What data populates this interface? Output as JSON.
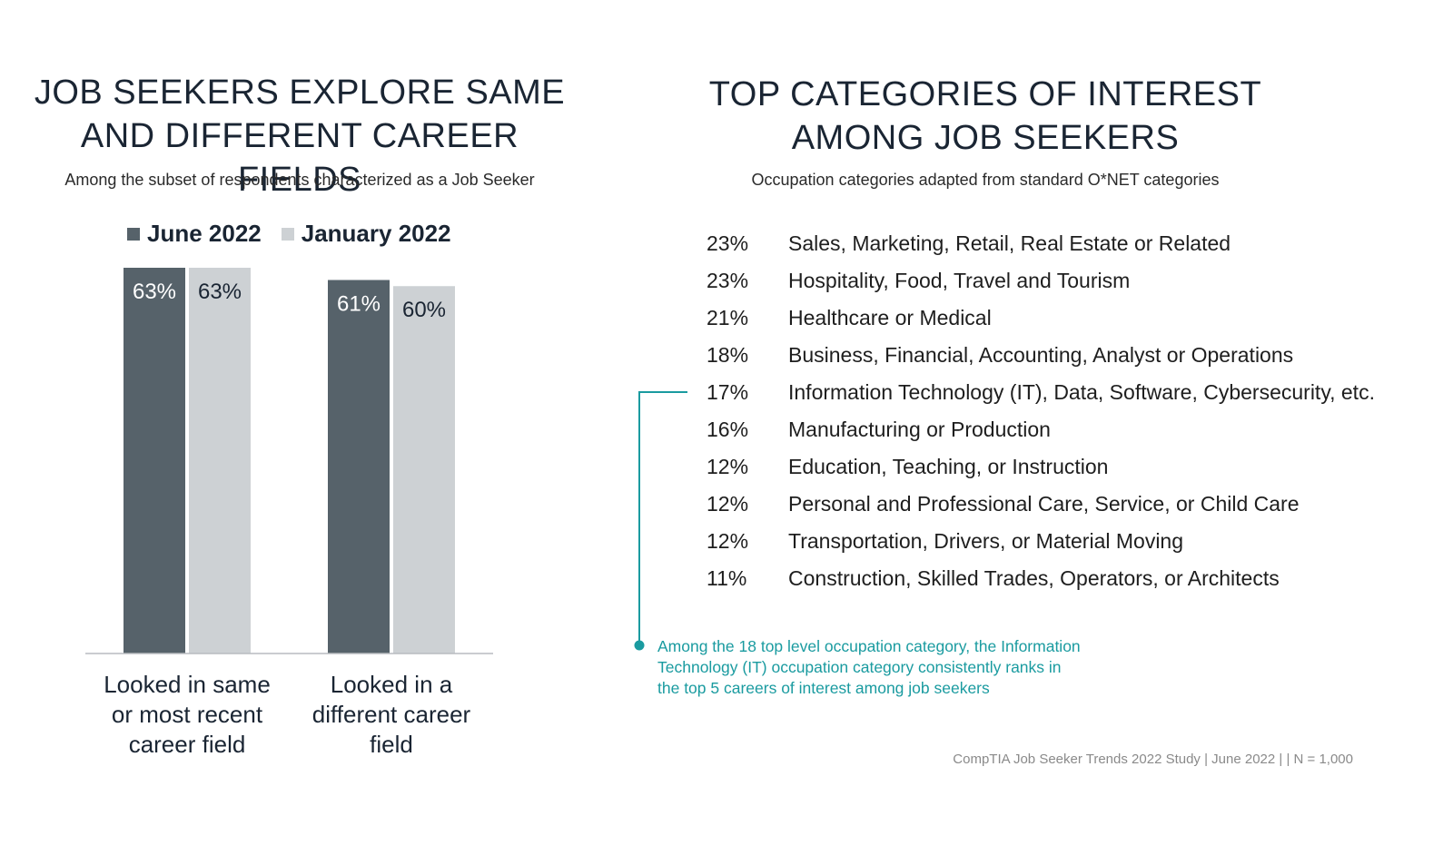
{
  "colors": {
    "june": "#56626a",
    "january": "#cdd1d4",
    "accent": "#1a9ba0",
    "axis": "#b8bcc0"
  },
  "left_panel": {
    "title_line1": "JOB SEEKERS EXPLORE SAME",
    "title_line2": "AND DIFFERENT CAREER FIELDS",
    "subtitle": "Among the subset of respondents characterized as a Job Seeker",
    "legend": [
      {
        "label": "June 2022"
      },
      {
        "label": "January 2022"
      }
    ]
  },
  "chart_data": {
    "type": "bar",
    "title": "JOB SEEKERS EXPLORE SAME AND DIFFERENT CAREER FIELDS",
    "categories": [
      "Looked in same or most recent career field",
      "Looked in a different career field"
    ],
    "category_lines": [
      [
        "Looked in same",
        "or most recent",
        "career field"
      ],
      [
        "Looked in a",
        "different career",
        "field"
      ]
    ],
    "series": [
      {
        "name": "June 2022",
        "values": [
          63,
          61
        ],
        "labels": [
          "63%",
          "61%"
        ]
      },
      {
        "name": "January 2022",
        "values": [
          63,
          60
        ],
        "labels": [
          "63%",
          "60%"
        ]
      }
    ],
    "ylim": [
      0,
      63
    ],
    "grid": false
  },
  "right_panel": {
    "title_line1": "TOP CATEGORIES OF INTEREST",
    "title_line2": "AMONG JOB SEEKERS",
    "subtitle": "Occupation categories adapted from standard O*NET categories",
    "categories": [
      {
        "pct": "23%",
        "label": "Sales, Marketing, Retail, Real Estate or Related"
      },
      {
        "pct": "23%",
        "label": "Hospitality, Food, Travel and Tourism"
      },
      {
        "pct": "21%",
        "label": "Healthcare or Medical"
      },
      {
        "pct": "18%",
        "label": "Business, Financial, Accounting, Analyst or Operations"
      },
      {
        "pct": "17%",
        "label": "Information Technology (IT), Data, Software, Cybersecurity, etc."
      },
      {
        "pct": "16%",
        "label": "Manufacturing or Production"
      },
      {
        "pct": "12%",
        "label": "Education, Teaching, or Instruction"
      },
      {
        "pct": "12%",
        "label": "Personal and Professional Care, Service, or Child Care"
      },
      {
        "pct": "12%",
        "label": "Transportation, Drivers, or Material Moving"
      },
      {
        "pct": "11%",
        "label": "Construction, Skilled Trades, Operators, or Architects"
      }
    ],
    "note_line1": "Among the 18 top level occupation category, the Information",
    "note_line2": "Technology (IT) occupation category consistently ranks in",
    "note_line3": "the top 5 careers of interest among job seekers",
    "source": "CompTIA Job Seeker Trends 2022 Study | June 2022 | | N = 1,000"
  }
}
